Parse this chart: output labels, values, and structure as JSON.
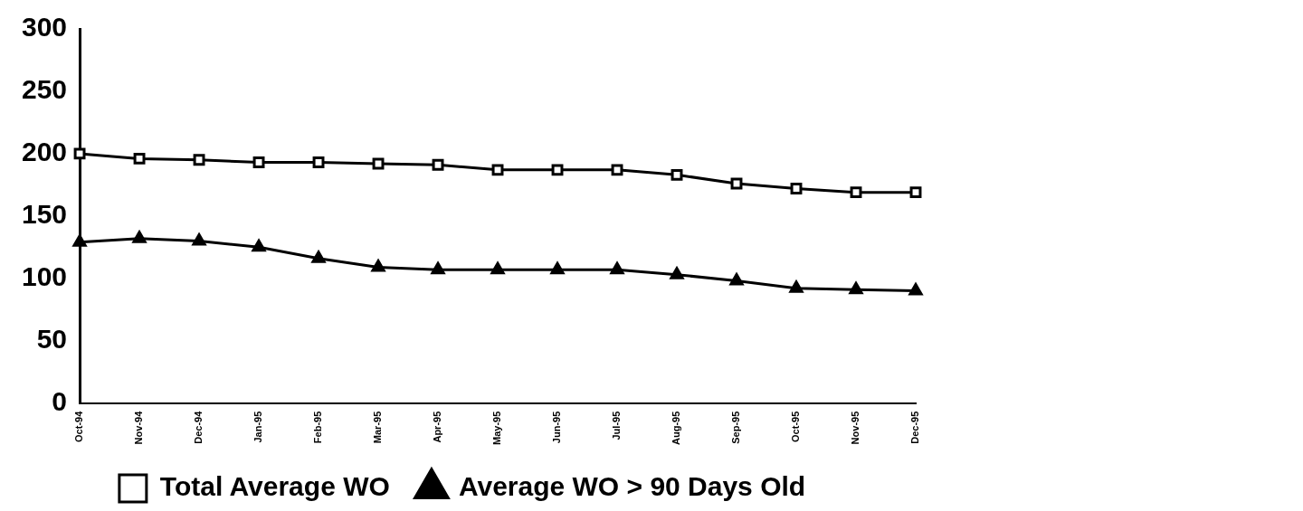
{
  "chart_data": {
    "type": "line",
    "categories": [
      "Oct-94",
      "Nov-94",
      "Dec-94",
      "Jan-95",
      "Feb-95",
      "Mar-95",
      "Apr-95",
      "May-95",
      "Jun-95",
      "Jul-95",
      "Aug-95",
      "Sep-95",
      "Oct-95",
      "Nov-95",
      "Dec-95"
    ],
    "series": [
      {
        "name": "Total Average WO",
        "color": "#000000",
        "marker": "square",
        "values": [
          200,
          196,
          195,
          193,
          193,
          192,
          191,
          187,
          187,
          187,
          183,
          176,
          172,
          169,
          169
        ]
      },
      {
        "name": "Average WO > 90 Days Old",
        "color": "#000000",
        "marker": "triangle",
        "values": [
          129,
          132,
          130,
          125,
          116,
          109,
          107,
          107,
          107,
          107,
          103,
          98,
          92,
          91,
          90
        ]
      }
    ],
    "ylim": [
      0,
      300
    ],
    "yticks": [
      0,
      50,
      100,
      150,
      200,
      250,
      300
    ],
    "grid": false,
    "legend": "bottom",
    "line_style": "solid"
  }
}
